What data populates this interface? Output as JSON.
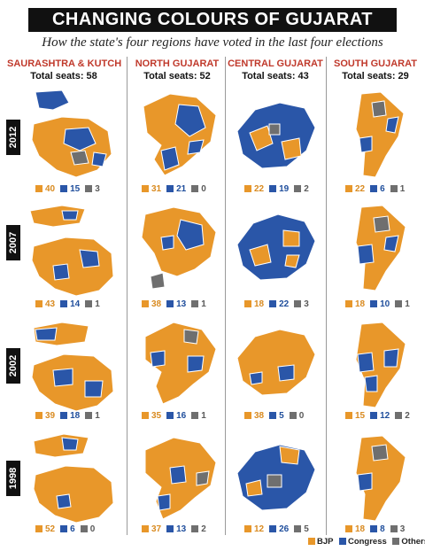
{
  "title": "CHANGING COLOURS OF GUJARAT",
  "subtitle": "How the state's four regions have voted in the last four elections",
  "colors": {
    "bjp": "#e8972a",
    "congress": "#2a56a8",
    "others": "#6f6f6f"
  },
  "regions": [
    {
      "name": "SAURASHTRA & KUTCH",
      "seats": "Total seats: 58"
    },
    {
      "name": "NORTH GUJARAT",
      "seats": "Total seats: 52"
    },
    {
      "name": "CENTRAL GUJARAT",
      "seats": "Total seats: 43"
    },
    {
      "name": "SOUTH GUJARAT",
      "seats": "Total seats: 29"
    }
  ],
  "years": [
    "2012",
    "2007",
    "2002",
    "1998"
  ],
  "results": {
    "y2012": [
      {
        "bjp": "40",
        "congress": "15",
        "others": "3"
      },
      {
        "bjp": "31",
        "congress": "21",
        "others": "0"
      },
      {
        "bjp": "22",
        "congress": "19",
        "others": "2"
      },
      {
        "bjp": "22",
        "congress": "6",
        "others": "1"
      }
    ],
    "y2007": [
      {
        "bjp": "43",
        "congress": "14",
        "others": "1"
      },
      {
        "bjp": "38",
        "congress": "13",
        "others": "1"
      },
      {
        "bjp": "18",
        "congress": "22",
        "others": "3"
      },
      {
        "bjp": "18",
        "congress": "10",
        "others": "1"
      }
    ],
    "y2002": [
      {
        "bjp": "39",
        "congress": "18",
        "others": "1"
      },
      {
        "bjp": "35",
        "congress": "16",
        "others": "1"
      },
      {
        "bjp": "38",
        "congress": "5",
        "others": "0"
      },
      {
        "bjp": "15",
        "congress": "12",
        "others": "2"
      }
    ],
    "y1998": [
      {
        "bjp": "52",
        "congress": "6",
        "others": "0"
      },
      {
        "bjp": "37",
        "congress": "13",
        "others": "2"
      },
      {
        "bjp": "12",
        "congress": "26",
        "others": "5"
      },
      {
        "bjp": "18",
        "congress": "8",
        "others": "3"
      }
    ]
  },
  "legend": {
    "bjp": "BJP",
    "congress": "Congress",
    "others": "Others"
  }
}
